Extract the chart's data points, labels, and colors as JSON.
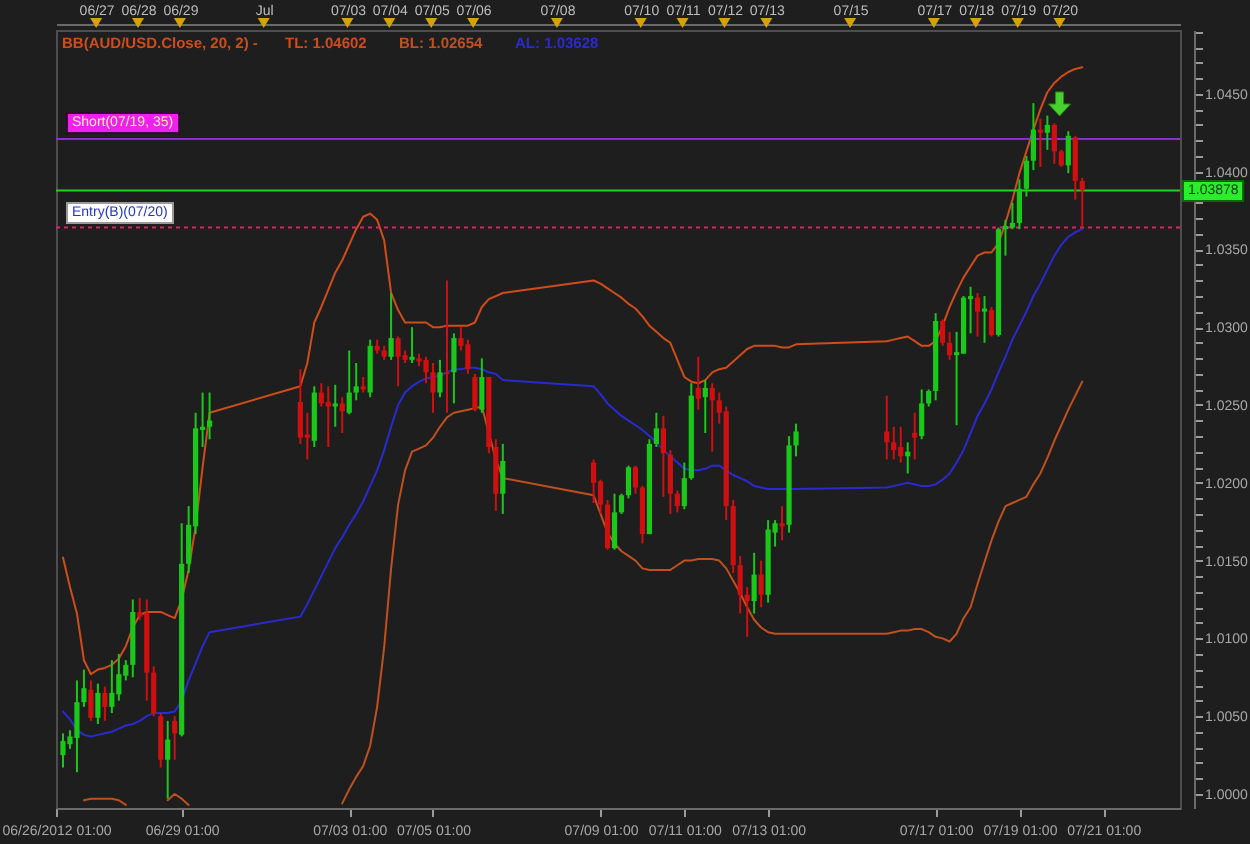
{
  "chart_data": {
    "type": "candlestick",
    "legend_title": "BB(AUD/USD.Close, 20, 2) -",
    "legend": "top left",
    "x": [
      "2012-06-26T05:00",
      "2012-06-26T09:00",
      "2012-06-26T13:00",
      "2012-06-26T17:00",
      "2012-06-26T21:00",
      "2012-06-27T01:00",
      "2012-06-27T05:00",
      "2012-06-27T09:00",
      "2012-06-27T13:00",
      "2012-06-27T17:00",
      "2012-06-27T21:00",
      "2012-06-28T01:00",
      "2012-06-28T05:00",
      "2012-06-28T09:00",
      "2012-06-28T13:00",
      "2012-06-28T17:00",
      "2012-06-28T21:00",
      "2012-06-29T01:00",
      "2012-06-29T05:00",
      "2012-06-29T09:00",
      "2012-06-29T13:00",
      "2012-06-29T17:00",
      "2012-07-01T21:00",
      "2012-07-02T01:00",
      "2012-07-02T05:00",
      "2012-07-02T09:00",
      "2012-07-02T13:00",
      "2012-07-02T17:00",
      "2012-07-02T21:00",
      "2012-07-03T01:00",
      "2012-07-03T05:00",
      "2012-07-03T09:00",
      "2012-07-03T13:00",
      "2012-07-03T17:00",
      "2012-07-03T21:00",
      "2012-07-04T01:00",
      "2012-07-04T05:00",
      "2012-07-04T09:00",
      "2012-07-04T13:00",
      "2012-07-04T17:00",
      "2012-07-04T21:00",
      "2012-07-05T01:00",
      "2012-07-05T05:00",
      "2012-07-05T09:00",
      "2012-07-05T13:00",
      "2012-07-05T17:00",
      "2012-07-05T21:00",
      "2012-07-06T01:00",
      "2012-07-06T05:00",
      "2012-07-06T09:00",
      "2012-07-06T13:00",
      "2012-07-06T17:00",
      "2012-07-08T21:00",
      "2012-07-09T01:00",
      "2012-07-09T05:00",
      "2012-07-09T09:00",
      "2012-07-09T13:00",
      "2012-07-09T17:00",
      "2012-07-09T21:00",
      "2012-07-10T01:00",
      "2012-07-10T05:00",
      "2012-07-10T09:00",
      "2012-07-10T13:00",
      "2012-07-10T17:00",
      "2012-07-10T21:00",
      "2012-07-11T01:00",
      "2012-07-11T05:00",
      "2012-07-11T09:00",
      "2012-07-11T13:00",
      "2012-07-11T17:00",
      "2012-07-11T21:00",
      "2012-07-12T01:00",
      "2012-07-12T05:00",
      "2012-07-12T09:00",
      "2012-07-12T13:00",
      "2012-07-12T17:00",
      "2012-07-12T21:00",
      "2012-07-13T01:00",
      "2012-07-13T05:00",
      "2012-07-13T09:00",
      "2012-07-13T13:00",
      "2012-07-13T17:00",
      "2012-07-15T21:00",
      "2012-07-16T01:00",
      "2012-07-16T05:00",
      "2012-07-16T09:00",
      "2012-07-16T13:00",
      "2012-07-16T17:00",
      "2012-07-16T21:00",
      "2012-07-17T01:00",
      "2012-07-17T05:00",
      "2012-07-17T09:00",
      "2012-07-17T13:00",
      "2012-07-17T17:00",
      "2012-07-17T21:00",
      "2012-07-18T01:00",
      "2012-07-18T05:00",
      "2012-07-18T09:00",
      "2012-07-18T13:00",
      "2012-07-18T17:00",
      "2012-07-18T21:00",
      "2012-07-19T01:00",
      "2012-07-19T05:00",
      "2012-07-19T09:00",
      "2012-07-19T13:00",
      "2012-07-19T17:00",
      "2012-07-19T21:00",
      "2012-07-20T01:00",
      "2012-07-20T05:00",
      "2012-07-20T09:00",
      "2012-07-20T13:00"
    ],
    "ohlc": [
      [
        1.0025,
        1.0039,
        1.0017,
        1.0034
      ],
      [
        1.0032,
        1.0041,
        1.0029,
        1.0037
      ],
      [
        1.0036,
        1.0073,
        1.0014,
        1.0059
      ],
      [
        1.0059,
        1.008,
        1.0056,
        1.0068
      ],
      [
        1.0067,
        1.0073,
        1.0047,
        1.0049
      ],
      [
        1.0049,
        1.0071,
        1.0045,
        1.0065
      ],
      [
        1.0065,
        1.0069,
        1.0047,
        1.0056
      ],
      [
        1.0056,
        1.0086,
        1.0052,
        1.0065
      ],
      [
        1.0064,
        1.009,
        1.006,
        1.0077
      ],
      [
        1.0076,
        1.0086,
        1.0073,
        1.0083
      ],
      [
        1.0083,
        1.0125,
        1.0075,
        1.0117
      ],
      [
        1.0117,
        1.0126,
        1.0112,
        1.0114
      ],
      [
        1.0116,
        1.0125,
        1.006,
        1.0078
      ],
      [
        1.0078,
        1.0082,
        1.005,
        1.0052
      ],
      [
        1.005,
        1.0052,
        1.0017,
        1.0022
      ],
      [
        1.0022,
        1.0047,
        0.9997,
        1.0035
      ],
      [
        1.0047,
        1.005,
        1.0022,
        1.0039
      ],
      [
        1.0038,
        1.0174,
        1.0037,
        1.0148
      ],
      [
        1.0148,
        1.0185,
        1.0142,
        1.0173
      ],
      [
        1.0172,
        1.0245,
        1.0167,
        1.0235
      ],
      [
        1.0234,
        1.0258,
        1.0223,
        1.0236
      ],
      [
        1.0236,
        1.0258,
        1.0228,
        1.024
      ],
      [
        1.0252,
        1.0273,
        1.0225,
        1.0229
      ],
      [
        1.0231,
        1.0245,
        1.0215,
        1.0229
      ],
      [
        1.0227,
        1.0262,
        1.0223,
        1.0258
      ],
      [
        1.0258,
        1.0264,
        1.0249,
        1.0251
      ],
      [
        1.0252,
        1.0262,
        1.0223,
        1.0249
      ],
      [
        1.0249,
        1.0263,
        1.0236,
        1.0251
      ],
      [
        1.0251,
        1.0255,
        1.0232,
        1.0246
      ],
      [
        1.0245,
        1.0285,
        1.0244,
        1.0258
      ],
      [
        1.0258,
        1.0277,
        1.0253,
        1.0262
      ],
      [
        1.0262,
        1.0268,
        1.0258,
        1.026
      ],
      [
        1.0258,
        1.0292,
        1.0255,
        1.0288
      ],
      [
        1.0288,
        1.0292,
        1.0283,
        1.0285
      ],
      [
        1.0285,
        1.0288,
        1.0279,
        1.0281
      ],
      [
        1.0281,
        1.0322,
        1.0279,
        1.0293
      ],
      [
        1.0293,
        1.0294,
        1.0262,
        1.0281
      ],
      [
        1.0282,
        1.0285,
        1.0277,
        1.0279
      ],
      [
        1.0279,
        1.03,
        1.0277,
        1.0281
      ],
      [
        1.028,
        1.0283,
        1.0275,
        1.0278
      ],
      [
        1.0279,
        1.0281,
        1.0264,
        1.0271
      ],
      [
        1.0271,
        1.0277,
        1.0245,
        1.0258
      ],
      [
        1.0258,
        1.0279,
        1.0255,
        1.0271
      ],
      [
        1.0271,
        1.033,
        1.0245,
        1.027
      ],
      [
        1.0271,
        1.0296,
        1.0251,
        1.0293
      ],
      [
        1.0293,
        1.03,
        1.0285,
        1.0288
      ],
      [
        1.0289,
        1.0292,
        1.027,
        1.0273
      ],
      [
        1.0268,
        1.027,
        1.0246,
        1.0247
      ],
      [
        1.0247,
        1.028,
        1.0245,
        1.0268
      ],
      [
        1.0268,
        1.0268,
        1.0219,
        1.0223
      ],
      [
        1.0223,
        1.0228,
        1.0182,
        1.0193
      ],
      [
        1.0193,
        1.0225,
        1.018,
        1.0214
      ],
      [
        1.0213,
        1.0215,
        1.0187,
        1.02
      ],
      [
        1.0201,
        1.0202,
        1.018,
        1.0186
      ],
      [
        1.0186,
        1.0189,
        1.0157,
        1.0158
      ],
      [
        1.0158,
        1.0193,
        1.0157,
        1.0181
      ],
      [
        1.0181,
        1.0193,
        1.018,
        1.0192
      ],
      [
        1.0192,
        1.0211,
        1.019,
        1.021
      ],
      [
        1.021,
        1.0211,
        1.0193,
        1.0197
      ],
      [
        1.0197,
        1.0198,
        1.0161,
        1.0167
      ],
      [
        1.0167,
        1.0228,
        1.0167,
        1.0225
      ],
      [
        1.0225,
        1.0245,
        1.0223,
        1.0235
      ],
      [
        1.0235,
        1.0243,
        1.0191,
        1.0219
      ],
      [
        1.0218,
        1.0221,
        1.018,
        1.0193
      ],
      [
        1.0193,
        1.0195,
        1.0181,
        1.0185
      ],
      [
        1.0185,
        1.0213,
        1.0183,
        1.0203
      ],
      [
        1.0203,
        1.0264,
        1.0202,
        1.0256
      ],
      [
        1.0261,
        1.0281,
        1.0247,
        1.0254
      ],
      [
        1.0255,
        1.0266,
        1.0232,
        1.0261
      ],
      [
        1.0261,
        1.0264,
        1.022,
        1.0253
      ],
      [
        1.0253,
        1.0258,
        1.0238,
        1.0245
      ],
      [
        1.0246,
        1.0249,
        1.0176,
        1.0185
      ],
      [
        1.0185,
        1.0189,
        1.0142,
        1.0147
      ],
      [
        1.0147,
        1.0153,
        1.0116,
        1.0128
      ],
      [
        1.0128,
        1.0133,
        1.0101,
        1.0124
      ],
      [
        1.0124,
        1.0155,
        1.0116,
        1.0141
      ],
      [
        1.0141,
        1.015,
        1.012,
        1.0128
      ],
      [
        1.0128,
        1.0176,
        1.0123,
        1.017
      ],
      [
        1.0168,
        1.0176,
        1.0159,
        1.0174
      ],
      [
        1.0174,
        1.0185,
        1.0163,
        1.0172
      ],
      [
        1.0173,
        1.023,
        1.0168,
        1.0224
      ],
      [
        1.0224,
        1.0238,
        1.0217,
        1.0233
      ],
      [
        1.0233,
        1.0256,
        1.0215,
        1.0226
      ],
      [
        1.0226,
        1.0236,
        1.0215,
        1.0221
      ],
      [
        1.0223,
        1.0236,
        1.0213,
        1.0217
      ],
      [
        1.0217,
        1.0226,
        1.0206,
        1.022
      ],
      [
        1.0232,
        1.0245,
        1.0215,
        1.0229
      ],
      [
        1.023,
        1.026,
        1.0228,
        1.0251
      ],
      [
        1.0251,
        1.026,
        1.0249,
        1.0259
      ],
      [
        1.0259,
        1.0309,
        1.0253,
        1.0304
      ],
      [
        1.0304,
        1.0305,
        1.0288,
        1.029
      ],
      [
        1.029,
        1.0297,
        1.0279,
        1.0282
      ],
      [
        1.0282,
        1.0297,
        1.0237,
        1.0284
      ],
      [
        1.0283,
        1.032,
        1.0283,
        1.0319
      ],
      [
        1.0318,
        1.0326,
        1.0296,
        1.032
      ],
      [
        1.0319,
        1.0322,
        1.0294,
        1.031
      ],
      [
        1.031,
        1.032,
        1.029,
        1.0312
      ],
      [
        1.0311,
        1.0313,
        1.0294,
        1.0295
      ],
      [
        1.0295,
        1.0364,
        1.0294,
        1.0363
      ],
      [
        1.0363,
        1.0369,
        1.0346,
        1.0365
      ],
      [
        1.0364,
        1.038,
        1.0363,
        1.0367
      ],
      [
        1.0367,
        1.0395,
        1.0363,
        1.0389
      ],
      [
        1.0389,
        1.041,
        1.0384,
        1.0407
      ],
      [
        1.0407,
        1.0444,
        1.0401,
        1.0427
      ],
      [
        1.0427,
        1.0434,
        1.0403,
        1.0425
      ],
      [
        1.0425,
        1.0436,
        1.0414,
        1.043
      ],
      [
        1.043,
        1.0431,
        1.0405,
        1.0413
      ],
      [
        1.0413,
        1.0414,
        1.0403,
        1.0404
      ],
      [
        1.0404,
        1.0426,
        1.0399,
        1.0423
      ],
      [
        1.0422,
        1.0423,
        1.0382,
        1.0394
      ],
      [
        1.0394,
        1.0396,
        1.0364,
        1.0388
      ]
    ],
    "colors": [
      "#19c819",
      "#19c819",
      "#19c819",
      "#19c819",
      "#d01010",
      "#19c819",
      "#d01010",
      "#19c819",
      "#19c819",
      "#19c819",
      "#19c819",
      "#d01010",
      "#d01010",
      "#d01010",
      "#d01010",
      "#19c819",
      "#d01010",
      "#19c819",
      "#19c819",
      "#19c819",
      "#19c819",
      "#19c819",
      "#d01010",
      "#d01010",
      "#19c819",
      "#d01010",
      "#d01010",
      "#19c819",
      "#d01010",
      "#19c819",
      "#19c819",
      "#d01010",
      "#19c819",
      "#d01010",
      "#d01010",
      "#19c819",
      "#d01010",
      "#d01010",
      "#19c819",
      "#d01010",
      "#d01010",
      "#d01010",
      "#19c819",
      "#d01010",
      "#19c819",
      "#d01010",
      "#d01010",
      "#d01010",
      "#19c819",
      "#d01010",
      "#d01010",
      "#19c819",
      "#d01010",
      "#d01010",
      "#d01010",
      "#19c819",
      "#19c819",
      "#19c819",
      "#d01010",
      "#d01010",
      "#19c819",
      "#19c819",
      "#d01010",
      "#d01010",
      "#d01010",
      "#19c819",
      "#19c819",
      "#d01010",
      "#19c819",
      "#d01010",
      "#d01010",
      "#d01010",
      "#d01010",
      "#d01010",
      "#d01010",
      "#19c819",
      "#d01010",
      "#19c819",
      "#19c819",
      "#d01010",
      "#19c819",
      "#19c819",
      "#d01010",
      "#d01010",
      "#d01010",
      "#19c819",
      "#d01010",
      "#19c819",
      "#19c819",
      "#19c819",
      "#d01010",
      "#d01010",
      "#19c819",
      "#19c819",
      "#19c819",
      "#d01010",
      "#19c819",
      "#d01010",
      "#19c819",
      "#19c819",
      "#19c819",
      "#19c819",
      "#19c819",
      "#19c819",
      "#d01010",
      "#19c819",
      "#d01010",
      "#d01010",
      "#19c819",
      "#d01010",
      "#d01010"
    ],
    "series": [
      {
        "name": "TL: 1.04602",
        "type": "line",
        "color": "#d04c18",
        "values": [
          1.0152,
          1.0133,
          1.0116,
          1.0086,
          1.0077,
          1.008,
          1.0081,
          1.0083,
          1.0087,
          1.0095,
          1.0107,
          1.0115,
          1.0117,
          1.0117,
          1.0117,
          1.0115,
          1.0113,
          1.0125,
          1.0144,
          1.0172,
          1.021,
          1.0245,
          1.0262,
          1.0277,
          1.0303,
          1.0313,
          1.0324,
          1.0335,
          1.0343,
          1.0353,
          1.0363,
          1.0371,
          1.0373,
          1.0369,
          1.0356,
          1.0322,
          1.0311,
          1.0303,
          1.0303,
          1.0303,
          1.0303,
          1.03,
          1.03,
          1.0301,
          1.0301,
          1.0301,
          1.0301,
          1.0303,
          1.0313,
          1.0318,
          1.032,
          1.0322,
          1.033,
          1.0328,
          1.0325,
          1.0322,
          1.0319,
          1.0315,
          1.0312,
          1.0307,
          1.0301,
          1.0297,
          1.0293,
          1.029,
          1.0279,
          1.0268,
          1.0265,
          1.0264,
          1.0266,
          1.0271,
          1.0273,
          1.0274,
          1.0278,
          1.0282,
          1.0286,
          1.0288,
          1.0288,
          1.0288,
          1.0288,
          1.0287,
          1.0287,
          1.0289,
          1.0291,
          1.0292,
          1.0293,
          1.0294,
          1.0291,
          1.0288,
          1.0288,
          1.0291,
          1.0301,
          1.0313,
          1.0323,
          1.0332,
          1.0339,
          1.0346,
          1.0348,
          1.0348,
          1.0354,
          1.0367,
          1.0382,
          1.0399,
          1.0413,
          1.0427,
          1.044,
          1.0451,
          1.0457,
          1.0461,
          1.0464,
          1.0466,
          1.0467
        ]
      },
      {
        "name": "BL: 1.02654",
        "type": "line",
        "color": "#c0501e",
        "values": [
          null,
          null,
          null,
          0.9996,
          0.9997,
          0.9997,
          0.9997,
          0.9997,
          0.9996,
          0.9993,
          null,
          null,
          null,
          null,
          null,
          0.9996,
          1.0,
          0.9997,
          0.9993,
          null,
          null,
          null,
          null,
          null,
          null,
          null,
          null,
          null,
          0.9994,
          1.0003,
          1.0011,
          1.0018,
          1.0031,
          1.0056,
          1.0094,
          1.0145,
          1.0186,
          1.0208,
          1.022,
          1.0222,
          1.0224,
          1.0229,
          1.0236,
          1.0242,
          1.0245,
          1.0246,
          1.0247,
          1.0248,
          1.0249,
          1.0232,
          1.0215,
          1.0203,
          1.0192,
          1.018,
          1.0168,
          1.0161,
          1.0156,
          1.0153,
          1.015,
          1.0145,
          1.0144,
          1.0144,
          1.0144,
          1.0144,
          1.0147,
          1.015,
          1.015,
          1.0151,
          1.0151,
          1.0151,
          1.015,
          1.0145,
          1.0137,
          1.0129,
          1.012,
          1.0112,
          1.0107,
          1.0104,
          1.0103,
          1.0103,
          1.0103,
          1.0103,
          1.0103,
          1.0104,
          1.0105,
          1.0105,
          1.0106,
          1.0106,
          1.0104,
          1.0101,
          1.01,
          1.0098,
          1.0103,
          1.0113,
          1.012,
          1.0135,
          1.0149,
          1.0163,
          1.0175,
          1.0185,
          1.0187,
          1.0189,
          1.0191,
          1.0199,
          1.0206,
          1.0216,
          1.0227,
          1.0237,
          1.0247,
          1.0256,
          1.0265
        ]
      },
      {
        "name": "AL: 1.03628",
        "type": "line",
        "color": "#2a2ad2",
        "values": [
          1.0053,
          1.0048,
          1.0041,
          1.0038,
          1.0037,
          1.0038,
          1.0039,
          1.004,
          1.0042,
          1.0044,
          1.0045,
          1.0047,
          1.005,
          1.0052,
          1.0052,
          1.0052,
          1.0053,
          1.006,
          1.0073,
          1.0084,
          1.0095,
          1.0104,
          1.0114,
          1.0122,
          1.0131,
          1.014,
          1.0149,
          1.0158,
          1.0165,
          1.0173,
          1.018,
          1.0188,
          1.0198,
          1.0208,
          1.0221,
          1.0236,
          1.025,
          1.0258,
          1.0262,
          1.0265,
          1.0267,
          1.0268,
          1.0269,
          1.0271,
          1.0273,
          1.0273,
          1.0274,
          1.0274,
          1.0273,
          1.0271,
          1.027,
          1.0266,
          1.0262,
          1.0257,
          1.0251,
          1.0247,
          1.0243,
          1.024,
          1.0237,
          1.0234,
          1.023,
          1.0226,
          1.0221,
          1.0217,
          1.0213,
          1.0209,
          1.0208,
          1.0208,
          1.0209,
          1.0211,
          1.0211,
          1.0208,
          1.0205,
          1.0203,
          1.0201,
          1.0198,
          1.0197,
          1.0196,
          1.0196,
          1.0196,
          1.0196,
          1.0196,
          1.0197,
          1.0198,
          1.0199,
          1.02,
          1.0199,
          1.0198,
          1.0198,
          1.0199,
          1.0202,
          1.0206,
          1.0213,
          1.0221,
          1.0232,
          1.0243,
          1.0251,
          1.026,
          1.0271,
          1.0281,
          1.0292,
          1.0301,
          1.031,
          1.032,
          1.0328,
          1.0337,
          1.0346,
          1.0353,
          1.0358,
          1.0361,
          1.0363
        ]
      }
    ],
    "xlim": [
      "2012-06-26T01:00",
      "2012-07-22T21:00"
    ],
    "xticks": [
      {
        "value": "2012-06-26T01:00",
        "label": "06/26/2012 01:00"
      },
      {
        "value": "2012-06-29T01:00",
        "label": "06/29 01:00"
      },
      {
        "value": "2012-07-03T01:00",
        "label": "07/03 01:00"
      },
      {
        "value": "2012-07-05T01:00",
        "label": "07/05 01:00"
      },
      {
        "value": "2012-07-09T01:00",
        "label": "07/09 01:00"
      },
      {
        "value": "2012-07-11T01:00",
        "label": "07/11 01:00"
      },
      {
        "value": "2012-07-13T01:00",
        "label": "07/13 01:00"
      },
      {
        "value": "2012-07-17T01:00",
        "label": "07/17 01:00"
      },
      {
        "value": "2012-07-19T01:00",
        "label": "07/19 01:00"
      },
      {
        "value": "2012-07-21T01:00",
        "label": "07/21 01:00"
      }
    ],
    "x2lim": [
      "2012-06-26T01:00",
      "2012-07-22T21:00"
    ],
    "x2ticks": [
      {
        "value": "2012-06-27",
        "label": "06/27"
      },
      {
        "value": "2012-06-28",
        "label": "06/28"
      },
      {
        "value": "2012-06-29",
        "label": "06/29"
      },
      {
        "value": "2012-07-01",
        "label": "Jul"
      },
      {
        "value": "2012-07-03",
        "label": "07/03"
      },
      {
        "value": "2012-07-04",
        "label": "07/04"
      },
      {
        "value": "2012-07-05",
        "label": "07/05"
      },
      {
        "value": "2012-07-06",
        "label": "07/06"
      },
      {
        "value": "2012-07-08",
        "label": "07/08"
      },
      {
        "value": "2012-07-10",
        "label": "07/10"
      },
      {
        "value": "2012-07-11",
        "label": "07/11"
      },
      {
        "value": "2012-07-12",
        "label": "07/12"
      },
      {
        "value": "2012-07-13",
        "label": "07/13"
      },
      {
        "value": "2012-07-15",
        "label": "07/15"
      },
      {
        "value": "2012-07-17",
        "label": "07/17"
      },
      {
        "value": "2012-07-18",
        "label": "07/18"
      },
      {
        "value": "2012-07-19",
        "label": "07/19"
      },
      {
        "value": "2012-07-20",
        "label": "07/20"
      }
    ],
    "ylim": [
      0.9991,
      1.0491
    ],
    "yticks": [
      {
        "value": 1,
        "label": "1.0000"
      },
      {
        "value": 1.001,
        "label": null
      },
      {
        "value": 1.002,
        "label": null
      },
      {
        "value": 1.003,
        "label": null
      },
      {
        "value": 1.004,
        "label": null
      },
      {
        "value": 1.005,
        "label": "1.0050"
      },
      {
        "value": 1.006,
        "label": null
      },
      {
        "value": 1.007,
        "label": null
      },
      {
        "value": 1.008,
        "label": null
      },
      {
        "value": 1.009,
        "label": null
      },
      {
        "value": 1.01,
        "label": "1.0100"
      },
      {
        "value": 1.011,
        "label": null
      },
      {
        "value": 1.012,
        "label": null
      },
      {
        "value": 1.013,
        "label": null
      },
      {
        "value": 1.014,
        "label": null
      },
      {
        "value": 1.015,
        "label": "1.0150"
      },
      {
        "value": 1.016,
        "label": null
      },
      {
        "value": 1.017,
        "label": null
      },
      {
        "value": 1.018,
        "label": null
      },
      {
        "value": 1.019,
        "label": null
      },
      {
        "value": 1.02,
        "label": "1.0200"
      },
      {
        "value": 1.021,
        "label": null
      },
      {
        "value": 1.022,
        "label": null
      },
      {
        "value": 1.023,
        "label": null
      },
      {
        "value": 1.024,
        "label": null
      },
      {
        "value": 1.025,
        "label": "1.0250"
      },
      {
        "value": 1.026,
        "label": null
      },
      {
        "value": 1.027,
        "label": null
      },
      {
        "value": 1.028,
        "label": null
      },
      {
        "value": 1.029,
        "label": null
      },
      {
        "value": 1.03,
        "label": "1.0300"
      },
      {
        "value": 1.031,
        "label": null
      },
      {
        "value": 1.032,
        "label": null
      },
      {
        "value": 1.033,
        "label": null
      },
      {
        "value": 1.034,
        "label": null
      },
      {
        "value": 1.035,
        "label": "1.0350"
      },
      {
        "value": 1.036,
        "label": null
      },
      {
        "value": 1.037,
        "label": null
      },
      {
        "value": 1.038,
        "label": null
      },
      {
        "value": 1.039,
        "label": null
      },
      {
        "value": 1.04,
        "label": "1.0400"
      },
      {
        "value": 1.041,
        "label": null
      },
      {
        "value": 1.042,
        "label": null
      },
      {
        "value": 1.043,
        "label": null
      },
      {
        "value": 1.044,
        "label": null
      },
      {
        "value": 1.045,
        "label": "1.0450"
      },
      {
        "value": 1.046,
        "label": null
      },
      {
        "value": 1.047,
        "label": null
      },
      {
        "value": 1.048,
        "label": null
      },
      {
        "value": 1.049,
        "label": null
      }
    ],
    "ref_lines": [
      {
        "axis": "y",
        "value": 1.0421,
        "label": "Short(07/19, 35)",
        "color": "#8a2fd0"
      },
      {
        "axis": "y",
        "value": 1.03878,
        "label": "1.03878",
        "color": "#22d022"
      },
      {
        "axis": "y",
        "value": 1.0364,
        "label": "Entry(B)(07/20)",
        "color": "#e0206e",
        "line_style": "dotted"
      }
    ]
  }
}
